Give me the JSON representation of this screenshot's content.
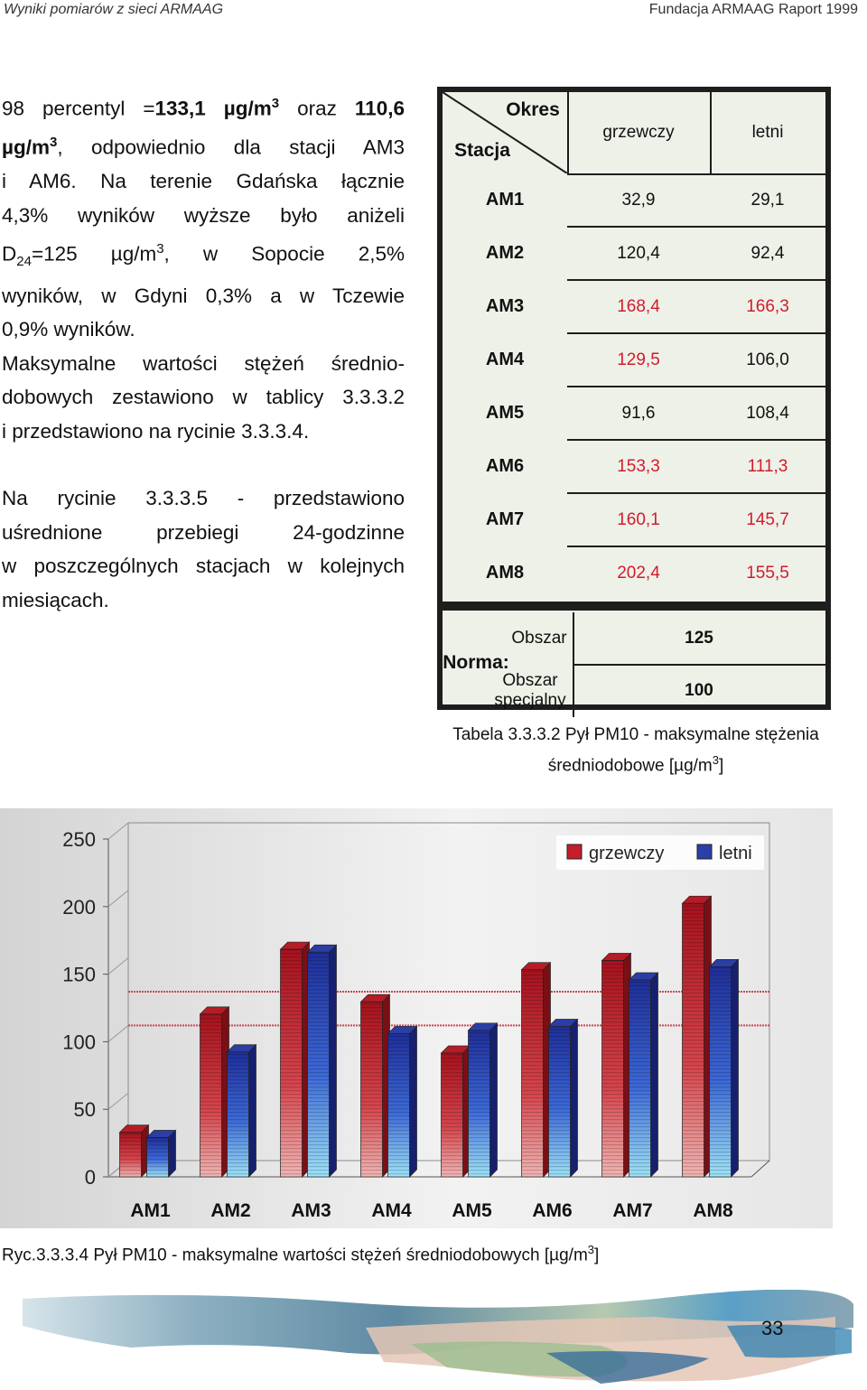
{
  "header": {
    "left": "Wyniki pomiarów z sieci ARMAAG",
    "right": "Fundacja ARMAAG Raport 1999"
  },
  "text": {
    "p1_l1_a": "98 percentyl =",
    "p1_l1_b": "133,1 µg/m",
    "p1_l1_sup": "3",
    "p1_l1_c": " oraz ",
    "p1_l1_d": "110,6",
    "p1_l2_a": "µg/m",
    "p1_l2_sup": "3",
    "p1_l2_b": ", odpowiednio dla stacji AM3",
    "p1_l3": "i AM6. Na terenie Gdańska łącznie",
    "p1_l4": "4,3% wyników wyższe było aniżeli",
    "p1_l5_a": "D",
    "p1_l5_sub": "24",
    "p1_l5_b": "=125 µg/m",
    "p1_l5_sup": "3",
    "p1_l5_c": ", w Sopocie 2,5%",
    "p1_l6": "wyników, w Gdyni 0,3% a w Tczewie",
    "p1_l7": "0,9% wyników.",
    "p2_l1": "Maksymalne wartości stężeń średnio-",
    "p2_l2": "dobowych zestawiono w tablicy 3.3.3.2",
    "p2_l3": "i przedstawiono na rycinie 3.3.3.4.",
    "p3_l1": "Na rycinie 3.3.3.5 - przedstawiono",
    "p3_l2": "uśrednione przebiegi 24-godzinne",
    "p3_l3": "w poszczególnych stacjach w kolejnych",
    "p3_l4": "miesiącach."
  },
  "table": {
    "header_okres": "Okres",
    "header_stacja": "Stacja",
    "col1": "grzewczy",
    "col2": "letni",
    "rows": [
      {
        "station": "AM1",
        "v1": "32,9",
        "v2": "29,1",
        "red1": false,
        "red2": false
      },
      {
        "station": "AM2",
        "v1": "120,4",
        "v2": "92,4",
        "red1": false,
        "red2": false
      },
      {
        "station": "AM3",
        "v1": "168,4",
        "v2": "166,3",
        "red1": true,
        "red2": true
      },
      {
        "station": "AM4",
        "v1": "129,5",
        "v2": "106,0",
        "red1": true,
        "red2": false
      },
      {
        "station": "AM5",
        "v1": "91,6",
        "v2": "108,4",
        "red1": false,
        "red2": false
      },
      {
        "station": "AM6",
        "v1": "153,3",
        "v2": "111,3",
        "red1": true,
        "red2": true
      },
      {
        "station": "AM7",
        "v1": "160,1",
        "v2": "145,7",
        "red1": true,
        "red2": true
      },
      {
        "station": "AM8",
        "v1": "202,4",
        "v2": "155,5",
        "red1": true,
        "red2": true
      }
    ],
    "norma_label": "Norma:",
    "obszar": "Obszar",
    "obszar_value": "125",
    "obszar_spec_1": "Obszar",
    "obszar_spec_2": "specjalny",
    "obszar_spec_value": "100",
    "red_color": "#d21c2c"
  },
  "table_caption": {
    "line1": "Tabela 3.3.3.2 Pył PM10 - maksymalne stężenia",
    "line2_a": "średniodobowe [µg/m",
    "line2_sup": "3",
    "line2_b": "]"
  },
  "chart_data": {
    "type": "bar",
    "categories": [
      "AM1",
      "AM2",
      "AM3",
      "AM4",
      "AM5",
      "AM6",
      "AM7",
      "AM8"
    ],
    "series": [
      {
        "name": "grzewczy",
        "values": [
          32.9,
          120.4,
          168.4,
          129.5,
          91.6,
          153.3,
          160.1,
          202.4
        ],
        "color": "#c41e2a"
      },
      {
        "name": "letni",
        "values": [
          29.1,
          92.4,
          166.3,
          106.0,
          108.4,
          111.3,
          145.7,
          155.5
        ],
        "color": "#2b3fa8"
      }
    ],
    "y_ticks": [
      "0",
      "50",
      "100",
      "150",
      "200",
      "250"
    ],
    "ylim": [
      0,
      250
    ],
    "reference_lines": [
      100,
      125
    ],
    "reference_color": "#c9494f",
    "legend_position": "top-right",
    "title": "",
    "xlabel": "",
    "ylabel": ""
  },
  "figure_caption": {
    "text_a": "Ryc.3.3.3.4 Pył PM10 - maksymalne wartości stężeń średniodobowych [µg/m",
    "sup": "3",
    "text_b": "]"
  },
  "page_number": "33"
}
